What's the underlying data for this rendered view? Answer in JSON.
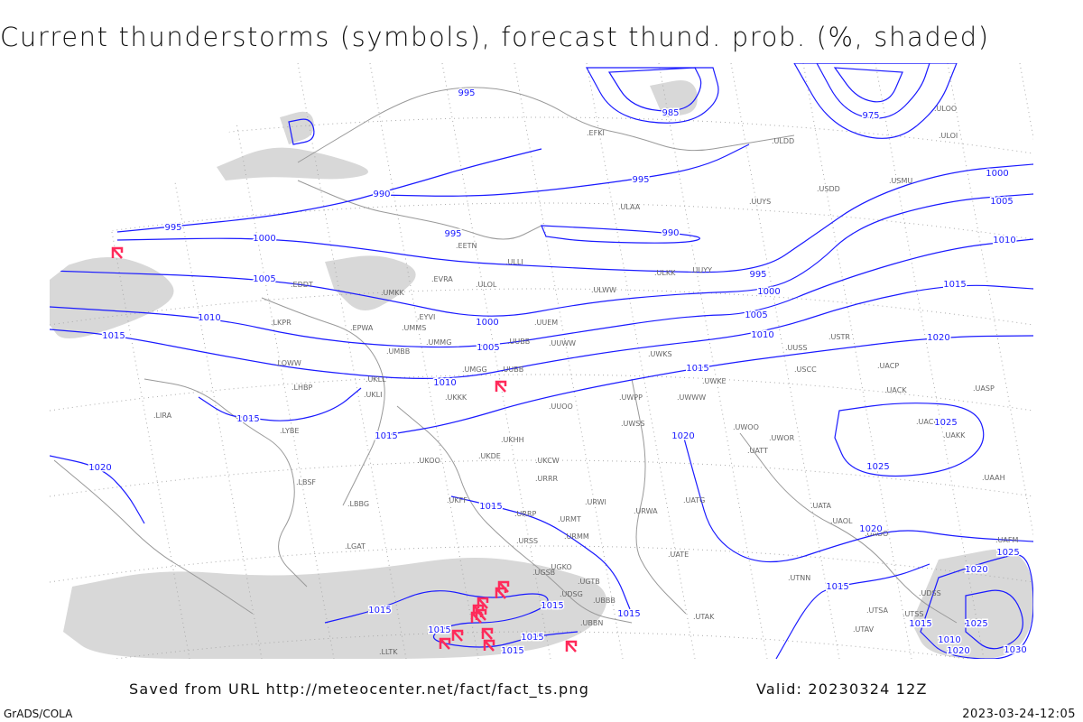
{
  "title": "Current thunderstorms (symbols), forecast thund. prob. (%, shaded)",
  "footer": {
    "saved_from": "Saved from URL http://meteocenter.net/fact/fact_ts.png",
    "valid": "Valid: 20230324 12Z",
    "software": "GrADS/COLA",
    "timestamp": "2023-03-24-12:05"
  },
  "colors": {
    "isobar": "#1a1aff",
    "thunderstorm_symbol": "#ff2a5a",
    "shading": "#d8d8d8",
    "borders": "#999999"
  },
  "isobar_labels": [
    "995",
    "985",
    "975",
    "990",
    "995",
    "995",
    "1000",
    "995",
    "990",
    "1005",
    "995",
    "1000",
    "1000",
    "1005",
    "1010",
    "1015",
    "1010",
    "1015",
    "1000",
    "1005",
    "1005",
    "1010",
    "1010",
    "1015",
    "1020",
    "1015",
    "1015",
    "1020",
    "1025",
    "1020",
    "1025",
    "1015",
    "1020",
    "1015",
    "1015",
    "1015",
    "1015",
    "1015",
    "1015",
    "1015",
    "1025",
    "1020",
    "1015",
    "1010",
    "1025",
    "1020",
    "1030"
  ],
  "stations": [
    "ULOO",
    "ULOI",
    "ULDD",
    "EFKI",
    "ULAA",
    "UUYS",
    "USDD",
    "USMU",
    "ULLI",
    "EETN",
    "UUYY",
    "ULKK",
    "EVRA",
    "ULOL",
    "ULWW",
    "UMKK",
    "EYVI",
    "EDDT",
    "LKPR",
    "EPWA",
    "UMMS",
    "UMMG",
    "UMBB",
    "UUBB",
    "UUEM",
    "UUWW",
    "UWKS",
    "UWPP",
    "UMGG",
    "UUBB",
    "LOWW",
    "LHBP",
    "UKLL",
    "UKLI",
    "UKKK",
    "UUOO",
    "UWWW",
    "UWKE",
    "USCC",
    "UUSS",
    "USTR",
    "UACP",
    "UACK",
    "UASP",
    "UACC",
    "UAKK",
    "LIRA",
    "LYBE",
    "UKHH",
    "UKOO",
    "UKDE",
    "UKCW",
    "URRR",
    "UWSS",
    "UWOO",
    "UWOR",
    "UATT",
    "LBSF",
    "LBBG",
    "UKFF",
    "URRP",
    "URWI",
    "URWA",
    "URMT",
    "URMM",
    "URSS",
    "UGSB",
    "UGKO",
    "UGTB",
    "UDSG",
    "UBBB",
    "UBBN",
    "UTAK",
    "UATE",
    "UATG",
    "UATA",
    "UAOL",
    "UAOO",
    "UTNN",
    "UAAH",
    "UAFM",
    "UTSA",
    "UTSS",
    "UTAV",
    "UDSS",
    "LGAT",
    "LLTK"
  ],
  "thunderstorm_symbol_count": 13
}
